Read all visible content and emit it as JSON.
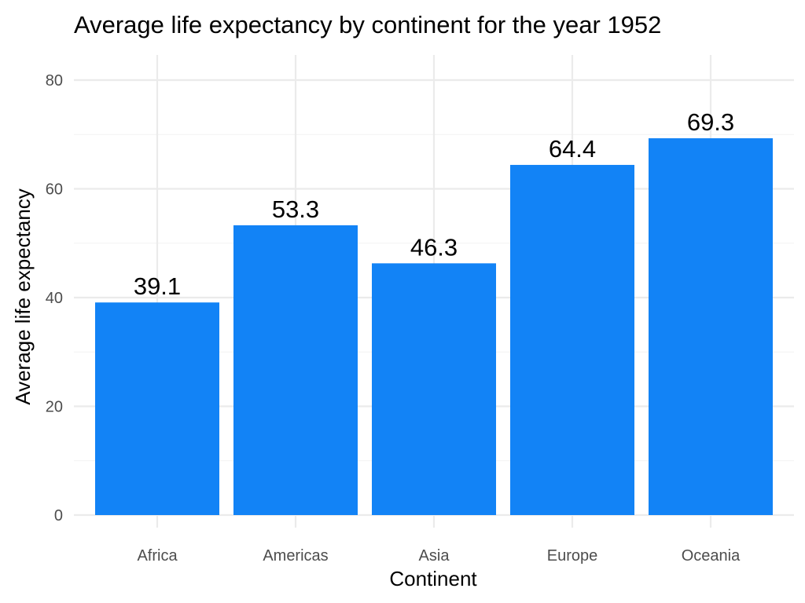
{
  "chart_data": {
    "type": "bar",
    "title": "Average life expectancy by continent for the year 1952",
    "xlabel": "Continent",
    "ylabel": "Average life expectancy",
    "categories": [
      "Africa",
      "Americas",
      "Asia",
      "Europe",
      "Oceania"
    ],
    "values": [
      39.1,
      53.3,
      46.3,
      64.4,
      69.3
    ],
    "data_labels": [
      "39.1",
      "53.3",
      "46.3",
      "64.4",
      "69.3"
    ],
    "ylim": [
      0,
      85
    ],
    "yticks": [
      0,
      20,
      40,
      60,
      80
    ],
    "ytick_labels": [
      "0",
      "20",
      "40",
      "60",
      "80"
    ],
    "grid": true,
    "legend": "none",
    "bar_color": "#1283f6"
  }
}
